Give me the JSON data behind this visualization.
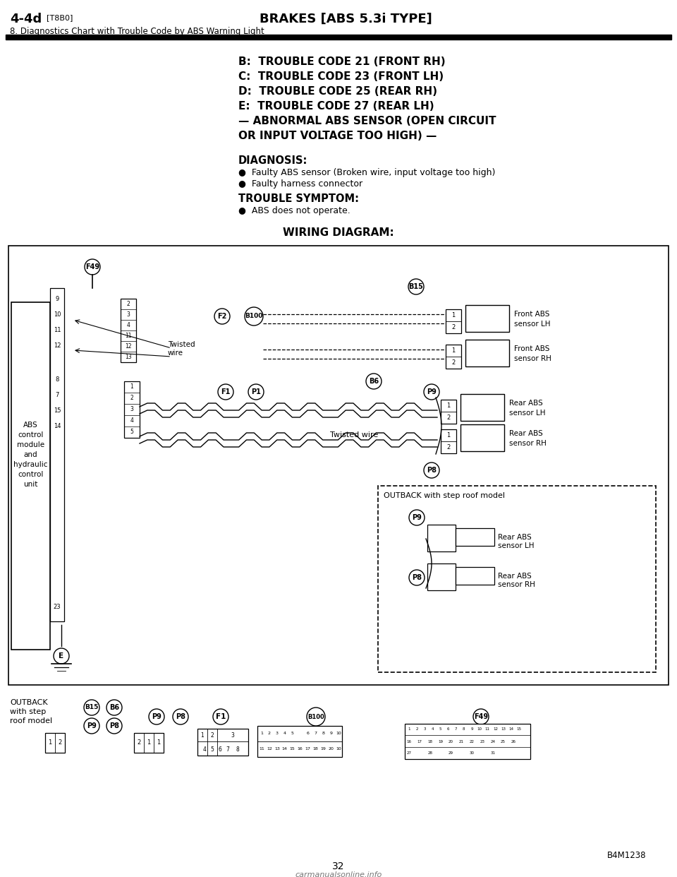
{
  "page_bg": "#ffffff",
  "header_left_bold": "4-4d",
  "header_left_small": "[T8B0]",
  "header_center": "BRAKES [ABS 5.3i TYPE]",
  "header_sub": "8. Diagnostics Chart with Trouble Code by ABS Warning Light",
  "title_lines": [
    "B:  TROUBLE CODE 21 (FRONT RH)",
    "C:  TROUBLE CODE 23 (FRONT LH)",
    "D:  TROUBLE CODE 25 (REAR RH)",
    "E:  TROUBLE CODE 27 (REAR LH)",
    "— ABNORMAL ABS SENSOR (OPEN CIRCUIT",
    "OR INPUT VOLTAGE TOO HIGH) —"
  ],
  "diagnosis_label": "DIAGNOSIS:",
  "diagnosis_bullets": [
    "Faulty ABS sensor (Broken wire, input voltage too high)",
    "Faulty harness connector"
  ],
  "symptom_label": "TROUBLE SYMPTOM:",
  "symptom_bullets": [
    "ABS does not operate."
  ],
  "wiring_label": "WIRING DIAGRAM:",
  "footer_code": "B4M1238",
  "page_number": "32",
  "watermark": "carmanualsonline.info"
}
